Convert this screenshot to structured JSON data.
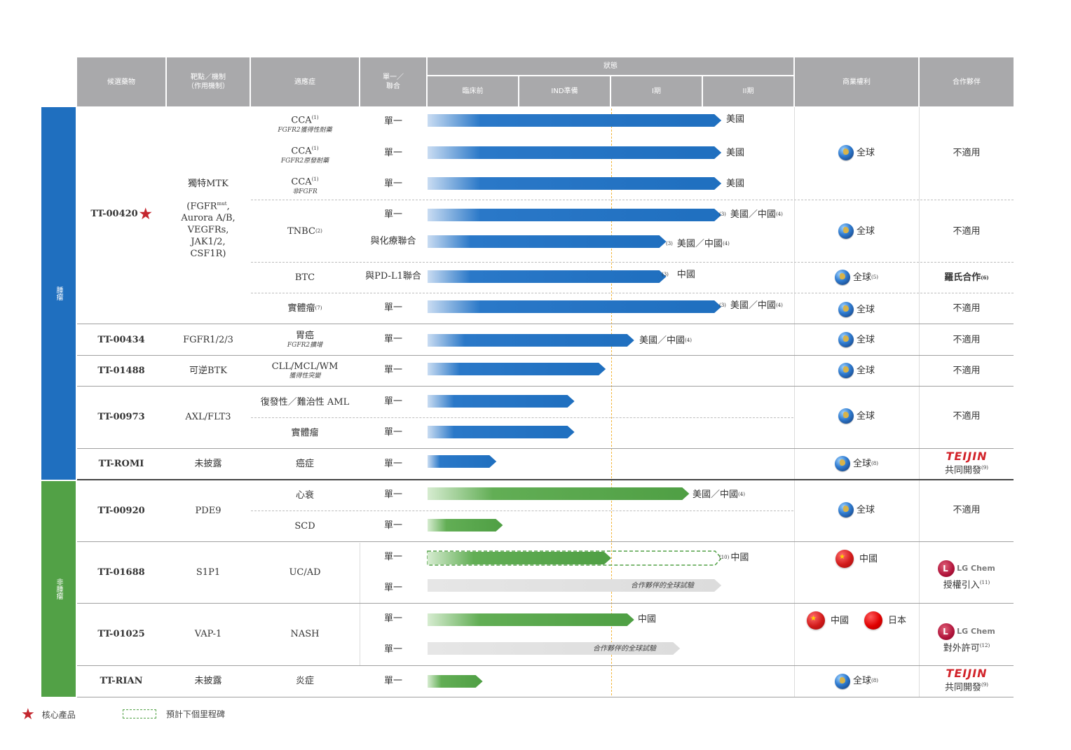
{
  "headers": {
    "candidate": "候選藥物",
    "target_line1": "靶點／機制",
    "target_line2": "（作用機制）",
    "indication": "適應症",
    "mono_line1": "單一／",
    "mono_line2": "聯合",
    "stage": "狀態",
    "preclinical": "臨床前",
    "ind": "IND準備",
    "phase1": "I期",
    "phase2": "II期",
    "rights": "商業權利",
    "partner": "合作夥伴"
  },
  "sections": {
    "oncology": "腫瘤",
    "non_oncology": "非腫瘤"
  },
  "drugs": {
    "tt00420": {
      "name": "TT-00420",
      "target": [
        "獨特MTK",
        "(FGFR",
        "mut",
        ",",
        "Aurora A/B,",
        "VEGFRs,",
        "JAK1/2,",
        "CSF1R)"
      ]
    },
    "tt00434": {
      "name": "TT-00434",
      "target": "FGFR1/2/3"
    },
    "tt01488": {
      "name": "TT-01488",
      "target": "可逆BTK"
    },
    "tt00973": {
      "name": "TT-00973",
      "target": "AXL/FLT3"
    },
    "ttromi": {
      "name": "TT-ROMI",
      "target": "未披露"
    },
    "tt00920": {
      "name": "TT-00920",
      "target": "PDE9"
    },
    "tt01688": {
      "name": "TT-01688",
      "target": "S1P1"
    },
    "tt01025": {
      "name": "TT-01025",
      "target": "VAP-1"
    },
    "ttrian": {
      "name": "TT-RIAN",
      "target": "未披露"
    }
  },
  "indications": {
    "cca1": {
      "main": "CCA",
      "sup": "(1)",
      "sub": "FGFR2獲得性耐藥"
    },
    "cca2": {
      "main": "CCA",
      "sup": "(1)",
      "sub": "FGFR2原發耐藥"
    },
    "cca3": {
      "main": "CCA",
      "sup": "(1)",
      "sub": "非FGFR"
    },
    "tnbc": {
      "main": "TNBC",
      "sup": "(2)"
    },
    "btc": {
      "main": "BTC"
    },
    "solid1": {
      "main": "實體瘤",
      "sup": "(7)"
    },
    "gastric": {
      "main": "胃癌",
      "sub": "FGFR2擴增"
    },
    "cll": {
      "main": "CLL/MCL/WM",
      "sub": "獲得性突變"
    },
    "aml": {
      "main": "復發性／難治性 AML"
    },
    "solid2": {
      "main": "實體瘤"
    },
    "cancer": {
      "main": "癌症"
    },
    "hf": {
      "main": "心衰"
    },
    "scd": {
      "main": "SCD"
    },
    "ucad": {
      "main": "UC/AD"
    },
    "nash": {
      "main": "NASH"
    },
    "inflam": {
      "main": "炎症"
    }
  },
  "modes": {
    "mono": "單一",
    "chemo": "與化療聯合",
    "pdl1": "與PD-L1聯合"
  },
  "bar_labels": {
    "us": "美國",
    "us_cn": "美國／中國",
    "cn": "中國",
    "partner_trial": "合作夥伴的全球試驗"
  },
  "footnotes": {
    "f3": "(3)",
    "f4": "(4)",
    "f5": "(5)",
    "f6": "(6)",
    "f8": "(8)",
    "f9": "(9)",
    "f10": "(10)",
    "f11": "(11)",
    "f12": "(12)"
  },
  "rights": {
    "global": "全球",
    "china": "中國",
    "japan": "日本"
  },
  "partners": {
    "na": "不適用",
    "roche": "羅氏合作",
    "teijin_logo": "TEIJIN",
    "codev": "共同開發",
    "lg_logo": "LG Chem",
    "license_in": "授權引入",
    "license_out": "對外許可"
  },
  "legend": {
    "core": "核心產品",
    "next": "預計下個里程碑"
  },
  "colors": {
    "onc_blue": "#1f6fbf",
    "non_onc_green": "#52a146",
    "header_grey": "#a9a9ab",
    "milestone_yellow": "#f2b53a",
    "star_red": "#c4262e"
  },
  "chart_data": {
    "type": "table",
    "title": "",
    "stage_columns": [
      "臨床前",
      "IND準備",
      "I期",
      "II期"
    ],
    "programs": [
      {
        "drug": "TT-00420",
        "indication": "CCA FGFR2獲得性耐藥",
        "mode": "單一",
        "progress": 3.2,
        "region": "美國",
        "color": "blue"
      },
      {
        "drug": "TT-00420",
        "indication": "CCA FGFR2原發耐藥",
        "mode": "單一",
        "progress": 3.2,
        "region": "美國",
        "color": "blue"
      },
      {
        "drug": "TT-00420",
        "indication": "CCA 非FGFR",
        "mode": "單一",
        "progress": 3.2,
        "region": "美國",
        "color": "blue"
      },
      {
        "drug": "TT-00420",
        "indication": "TNBC",
        "mode": "單一",
        "progress": 3.2,
        "region": "美國／中國",
        "color": "blue"
      },
      {
        "drug": "TT-00420",
        "indication": "TNBC",
        "mode": "與化療聯合",
        "progress": 2.6,
        "region": "美國／中國",
        "color": "blue"
      },
      {
        "drug": "TT-00420",
        "indication": "BTC",
        "mode": "與PD-L1聯合",
        "progress": 2.6,
        "region": "中國",
        "color": "blue"
      },
      {
        "drug": "TT-00420",
        "indication": "實體瘤",
        "mode": "單一",
        "progress": 3.2,
        "region": "美國／中國",
        "color": "blue"
      },
      {
        "drug": "TT-00434",
        "indication": "胃癌 FGFR2擴增",
        "mode": "單一",
        "progress": 2.25,
        "region": "美國／中國",
        "color": "blue"
      },
      {
        "drug": "TT-01488",
        "indication": "CLL/MCL/WM",
        "mode": "單一",
        "progress": 1.94,
        "region": "",
        "color": "blue"
      },
      {
        "drug": "TT-00973",
        "indication": "復發性／難治性 AML",
        "mode": "單一",
        "progress": 1.6,
        "region": "",
        "color": "blue"
      },
      {
        "drug": "TT-00973",
        "indication": "實體瘤",
        "mode": "單一",
        "progress": 1.6,
        "region": "",
        "color": "blue"
      },
      {
        "drug": "TT-ROMI",
        "indication": "癌症",
        "mode": "單一",
        "progress": 0.75,
        "region": "",
        "color": "blue"
      },
      {
        "drug": "TT-00920",
        "indication": "心衰",
        "mode": "單一",
        "progress": 2.85,
        "region": "美國／中國",
        "color": "green"
      },
      {
        "drug": "TT-00920",
        "indication": "SCD",
        "mode": "單一",
        "progress": 0.82,
        "region": "",
        "color": "green"
      },
      {
        "drug": "TT-01688",
        "indication": "UC/AD",
        "mode": "單一",
        "progress": 2.0,
        "next_milestone": 3.2,
        "region": "中國",
        "color": "green"
      },
      {
        "drug": "TT-01688",
        "indication": "UC/AD",
        "mode": "單一",
        "progress": 3.2,
        "region": "合作夥伴的全球試驗",
        "color": "grey"
      },
      {
        "drug": "TT-01025",
        "indication": "NASH",
        "mode": "單一",
        "progress": 2.25,
        "region": "中國",
        "color": "green"
      },
      {
        "drug": "TT-01025",
        "indication": "NASH",
        "mode": "單一",
        "progress": 2.75,
        "region": "合作夥伴的全球試驗",
        "color": "grey"
      },
      {
        "drug": "TT-RIAN",
        "indication": "炎症",
        "mode": "單一",
        "progress": 0.6,
        "region": "",
        "color": "green"
      }
    ]
  }
}
